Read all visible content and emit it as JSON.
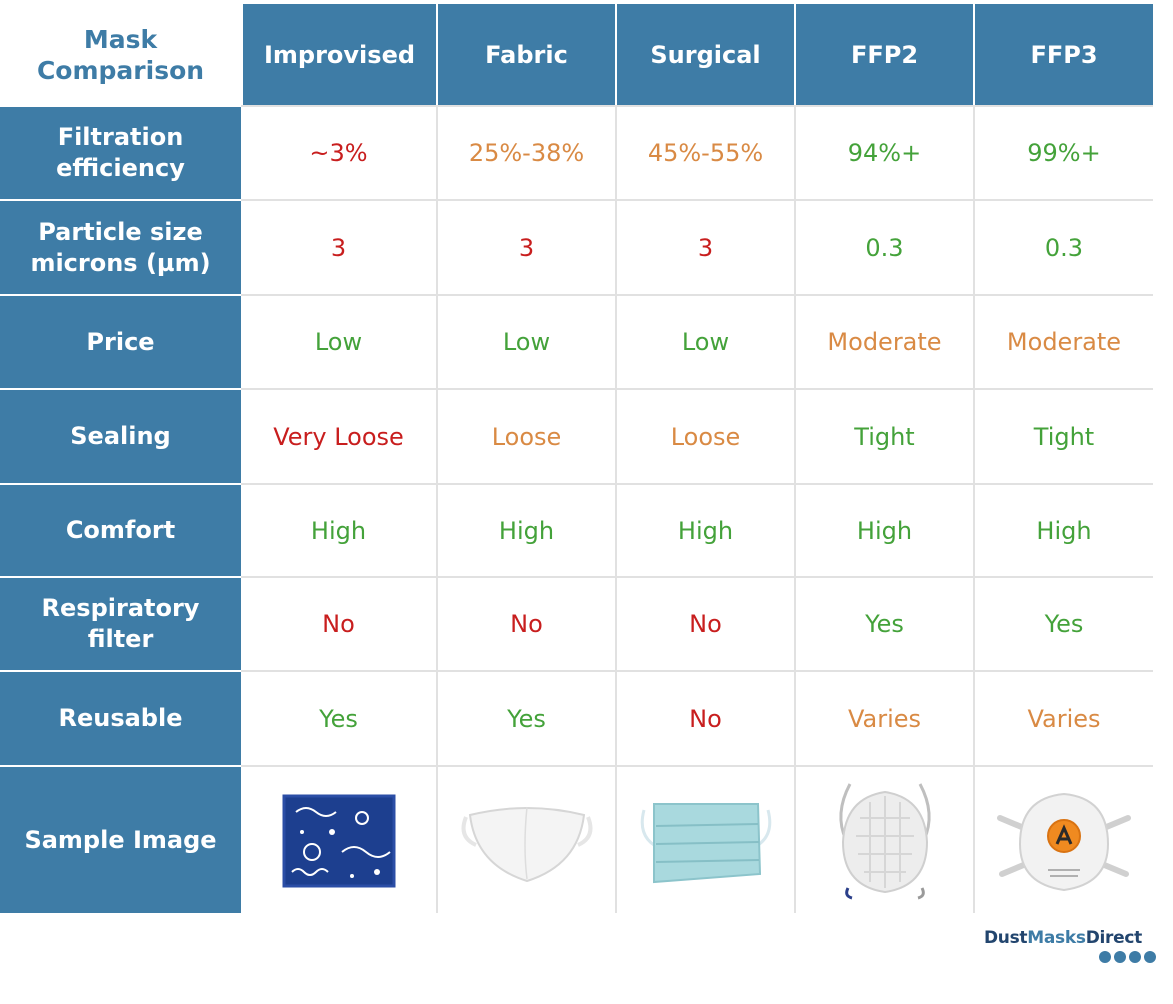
{
  "corner_title": "Mask\nComparison",
  "columns": [
    "Improvised",
    "Fabric",
    "Surgical",
    "FFP2",
    "FFP3"
  ],
  "rows": [
    {
      "label": "Filtration efficiency",
      "values": [
        "~3%",
        "25%-38%",
        "45%-55%",
        "94%+",
        "99%+"
      ],
      "colors": [
        "red",
        "orange",
        "orange",
        "green",
        "green"
      ]
    },
    {
      "label": "Particle size microns (µm)",
      "values": [
        "3",
        "3",
        "3",
        "0.3",
        "0.3"
      ],
      "colors": [
        "red",
        "red",
        "red",
        "green",
        "green"
      ]
    },
    {
      "label": "Price",
      "values": [
        "Low",
        "Low",
        "Low",
        "Moderate",
        "Moderate"
      ],
      "colors": [
        "green",
        "green",
        "green",
        "orange",
        "orange"
      ]
    },
    {
      "label": "Sealing",
      "values": [
        "Very Loose",
        "Loose",
        "Loose",
        "Tight",
        "Tight"
      ],
      "colors": [
        "red",
        "orange",
        "orange",
        "green",
        "green"
      ]
    },
    {
      "label": "Comfort",
      "values": [
        "High",
        "High",
        "High",
        "High",
        "High"
      ],
      "colors": [
        "green",
        "green",
        "green",
        "green",
        "green"
      ]
    },
    {
      "label": "Respiratory filter",
      "values": [
        "No",
        "No",
        "No",
        "Yes",
        "Yes"
      ],
      "colors": [
        "red",
        "red",
        "red",
        "green",
        "green"
      ]
    },
    {
      "label": "Reusable",
      "values": [
        "Yes",
        "Yes",
        "No",
        "Varies",
        "Varies"
      ],
      "colors": [
        "green",
        "green",
        "red",
        "orange",
        "orange"
      ]
    }
  ],
  "image_row_label": "Sample Image",
  "images": [
    "bandana-icon",
    "fabric-mask-icon",
    "surgical-mask-icon",
    "ffp2-mask-icon",
    "ffp3-mask-icon"
  ],
  "logo": {
    "part1": "Dust",
    "part2": "Masks",
    "part3": "Direct"
  },
  "colors": {
    "header_blue": "#3e7ca6",
    "red": "#c81e1e",
    "orange": "#d98a44",
    "green": "#44a23a"
  }
}
